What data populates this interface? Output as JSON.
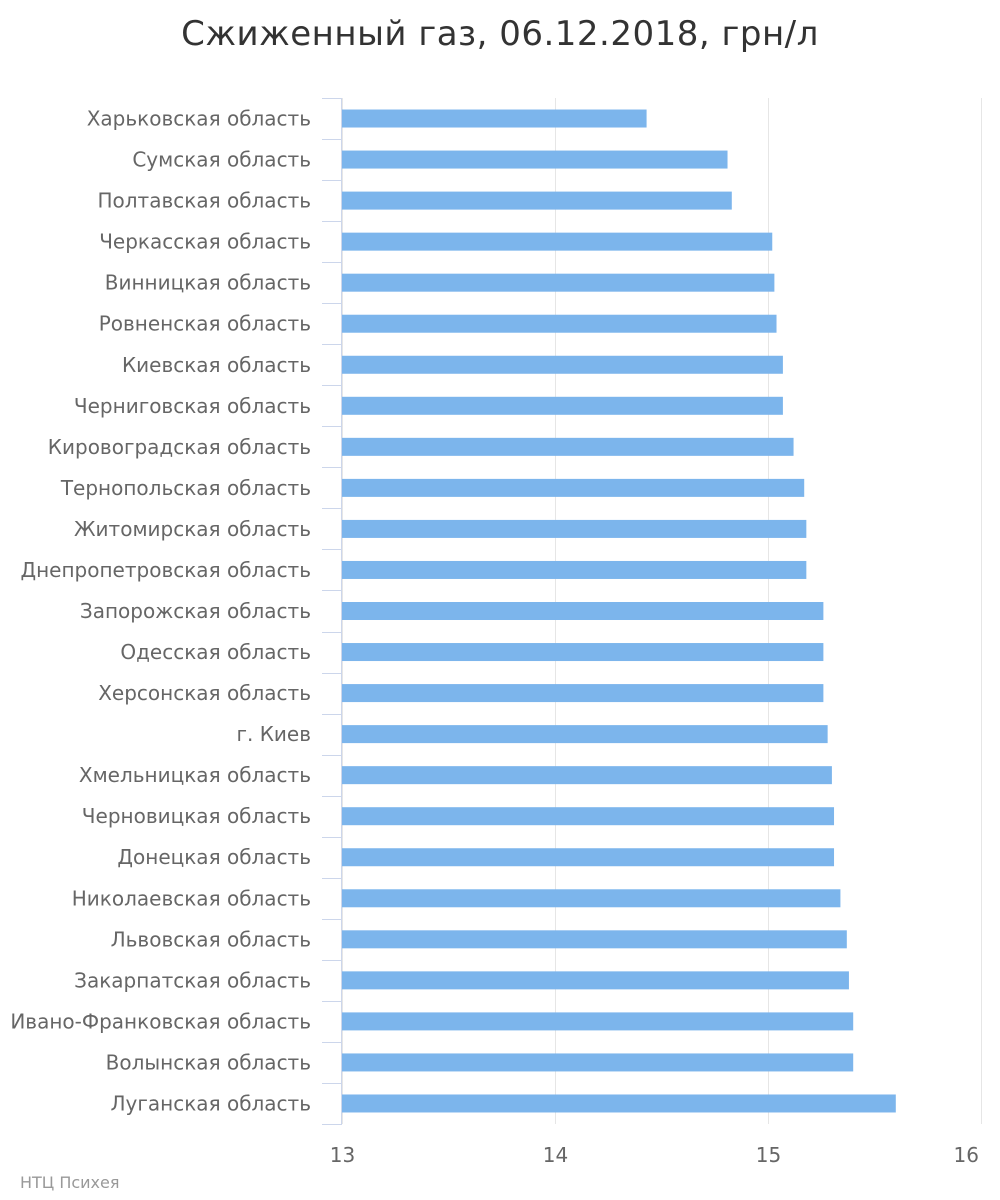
{
  "chart_data": {
    "type": "bar",
    "orientation": "horizontal",
    "title": "Сжиженный газ, 06.12.2018, грн/л",
    "xlabel": "",
    "ylabel": "",
    "categories": [
      "Харьковская область",
      "Сумская область",
      "Полтавская область",
      "Черкасская область",
      "Винницкая область",
      "Ровненская область",
      "Киевская область",
      "Черниговская область",
      "Кировоградская область",
      "Тернопольская область",
      "Житомирская область",
      "Днепропетровская область",
      "Запорожская область",
      "Одесская область",
      "Херсонская область",
      "г. Киев",
      "Хмельницкая область",
      "Черновицкая область",
      "Донецкая область",
      "Николаевская область",
      "Львовская область",
      "Закарпатская область",
      "Ивано-Франковская область",
      "Волынская область",
      "Луганская область"
    ],
    "values": [
      14.43,
      14.81,
      14.83,
      15.02,
      15.03,
      15.04,
      15.07,
      15.07,
      15.12,
      15.17,
      15.18,
      15.18,
      15.26,
      15.26,
      15.26,
      15.28,
      15.3,
      15.31,
      15.31,
      15.34,
      15.37,
      15.38,
      15.4,
      15.4,
      15.6
    ],
    "xlim": [
      13,
      16
    ],
    "xticks": [
      13,
      14,
      15,
      16
    ],
    "grid": true,
    "legend": "none",
    "bar_color": "#7cb5ec",
    "grid_color": "#e6e6e6",
    "axis_color": "#ccd6eb"
  },
  "credit": "НТЦ Психея"
}
